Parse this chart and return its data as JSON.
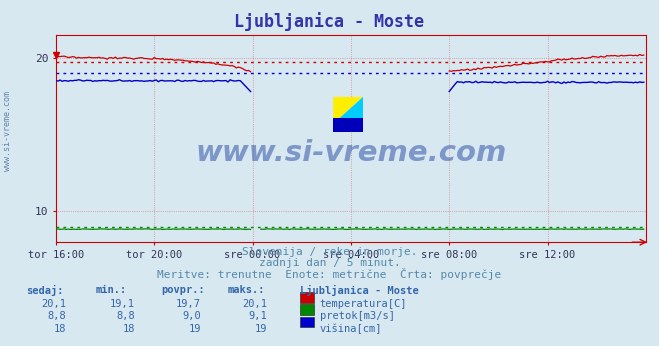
{
  "title": "Ljubljanica - Moste",
  "title_color": "#3333aa",
  "bg_color": "#d8e8f0",
  "plot_bg_color": "#d8e8f0",
  "ylim": [
    8.0,
    21.5
  ],
  "xlim": [
    0,
    288
  ],
  "yticks": [
    10,
    20
  ],
  "xtick_labels": [
    "tor 16:00",
    "tor 20:00",
    "sre 00:00",
    "sre 04:00",
    "sre 08:00",
    "sre 12:00"
  ],
  "xtick_positions": [
    0,
    48,
    96,
    144,
    192,
    240
  ],
  "temp_color": "#cc0000",
  "pretok_color": "#008800",
  "visina_color": "#0000cc",
  "temp_avg": 19.7,
  "pretok_avg": 9.0,
  "visina_avg": 19.0,
  "watermark_text": "www.si-vreme.com",
  "subtitle1": "Slovenija / reke in morje.",
  "subtitle2": "zadnji dan / 5 minut.",
  "subtitle3": "Meritve: trenutne  Enote: metrične  Črta: povprečje",
  "table_header": [
    "sedaj:",
    "min.:",
    "povpr.:",
    "maks.:"
  ],
  "table_col_label": "Ljubljanica - Moste",
  "table_rows": [
    [
      "20,1",
      "19,1",
      "19,7",
      "20,1",
      "temperatura[C]",
      "#cc0000"
    ],
    [
      "8,8",
      "8,8",
      "9,0",
      "9,1",
      "pretok[m3/s]",
      "#008800"
    ],
    [
      "18",
      "18",
      "19",
      "19",
      "višina[cm]",
      "#0000cc"
    ]
  ]
}
